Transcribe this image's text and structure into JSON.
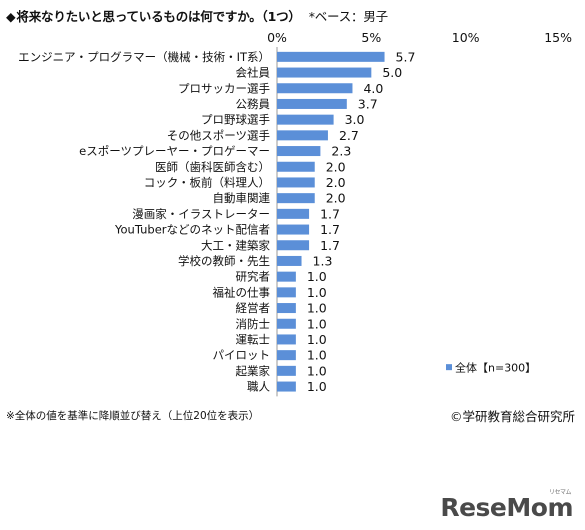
{
  "title": {
    "marker": "◆",
    "text": "将来なりたいと思っているものは何ですか。（1つ）",
    "base": "*ベース：男子"
  },
  "footnote": "※全体の値を基準に降順並び替え（上位20位を表示）",
  "copyright": "©学研教育総合研究所",
  "logo": {
    "text": "ReseMom",
    "ruby": "リセマム"
  },
  "colors": {
    "bar": "#5b8fd8",
    "axis": "#999999",
    "text": "#111111"
  },
  "chart_data": {
    "type": "bar",
    "orientation": "horizontal",
    "x_tick_labels": [
      "0%",
      "5%",
      "10%",
      "15%"
    ],
    "x_ticks": [
      0,
      5,
      10,
      15
    ],
    "xlim": [
      0,
      15
    ],
    "grid": false,
    "legend": {
      "label": "全体【n=300】",
      "position": "bottom-right"
    },
    "categories": [
      "エンジニア・プログラマー（機械・技術・IT系）",
      "会社員",
      "プロサッカー選手",
      "公務員",
      "プロ野球選手",
      "その他スポーツ選手",
      "eスポーツプレーヤー・プロゲーマー",
      "医師（歯科医師含む）",
      "コック・板前（料理人）",
      "自動車関連",
      "漫画家・イラストレーター",
      "YouTuberなどのネット配信者",
      "大工・建築家",
      "学校の教師・先生",
      "研究者",
      "福祉の仕事",
      "経営者",
      "消防士",
      "運転士",
      "パイロット",
      "起業家",
      "職人"
    ],
    "series": [
      {
        "name": "全体【n=300】",
        "values": [
          5.7,
          5.0,
          4.0,
          3.7,
          3.0,
          2.7,
          2.3,
          2.0,
          2.0,
          2.0,
          1.7,
          1.7,
          1.7,
          1.3,
          1.0,
          1.0,
          1.0,
          1.0,
          1.0,
          1.0,
          1.0,
          1.0
        ],
        "labels": [
          "5.7",
          "5.0",
          "4.0",
          "3.7",
          "3.0",
          "2.7",
          "2.3",
          "2.0",
          "2.0",
          "2.0",
          "1.7",
          "1.7",
          "1.7",
          "1.3",
          "1.0",
          "1.0",
          "1.0",
          "1.0",
          "1.0",
          "1.0",
          "1.0",
          "1.0"
        ]
      }
    ]
  }
}
